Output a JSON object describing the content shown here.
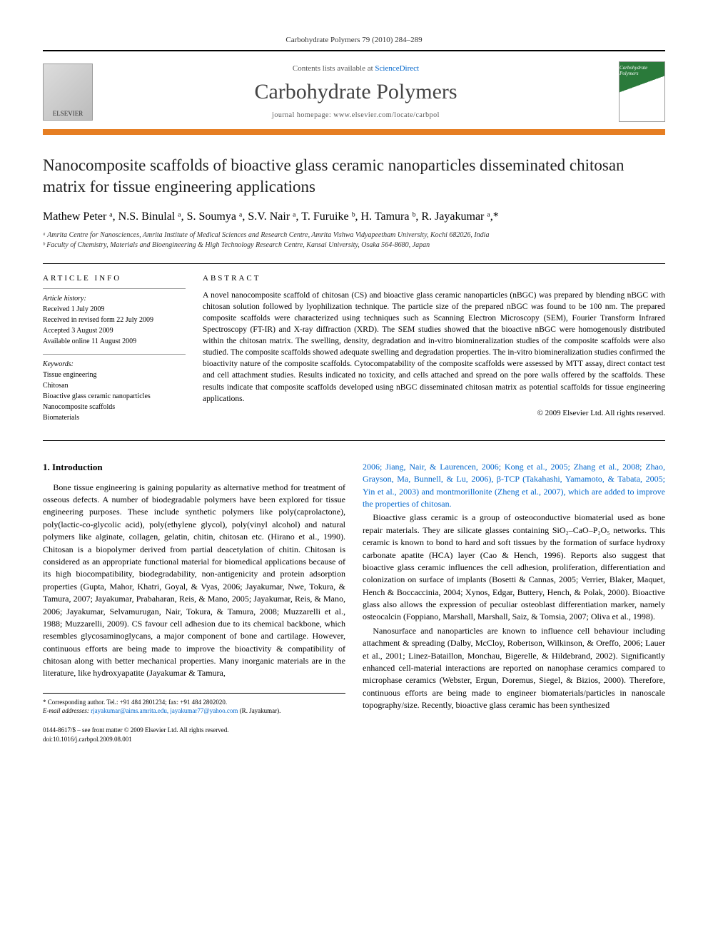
{
  "header": {
    "citation": "Carbohydrate Polymers 79 (2010) 284–289",
    "contents_line": "Contents lists available at ",
    "contents_link": "ScienceDirect",
    "journal_name": "Carbohydrate Polymers",
    "homepage_label": "journal homepage: ",
    "homepage_url": "www.elsevier.com/locate/carbpol",
    "publisher_logo": "ELSEVIER",
    "cover_label": "Carbohydrate Polymers"
  },
  "article": {
    "title": "Nanocomposite scaffolds of bioactive glass ceramic nanoparticles disseminated chitosan matrix for tissue engineering applications",
    "authors_html": "Mathew Peter ᵃ, N.S. Binulal ᵃ, S. Soumya ᵃ, S.V. Nair ᵃ, T. Furuike ᵇ, H. Tamura ᵇ, R. Jayakumar ᵃ,*",
    "affiliations": [
      "ᵃ Amrita Centre for Nanosciences, Amrita Institute of Medical Sciences and Research Centre, Amrita Vishwa Vidyapeetham University, Kochi 682026, India",
      "ᵇ Faculty of Chemistry, Materials and Bioengineering & High Technology Research Centre, Kansai University, Osaka 564-8680, Japan"
    ]
  },
  "info": {
    "heading": "ARTICLE INFO",
    "history_label": "Article history:",
    "history": [
      "Received 1 July 2009",
      "Received in revised form 22 July 2009",
      "Accepted 3 August 2009",
      "Available online 11 August 2009"
    ],
    "keywords_label": "Keywords:",
    "keywords": [
      "Tissue engineering",
      "Chitosan",
      "Bioactive glass ceramic nanoparticles",
      "Nanocomposite scaffolds",
      "Biomaterials"
    ]
  },
  "abstract": {
    "heading": "ABSTRACT",
    "text": "A novel nanocomposite scaffold of chitosan (CS) and bioactive glass ceramic nanoparticles (nBGC) was prepared by blending nBGC with chitosan solution followed by lyophilization technique. The particle size of the prepared nBGC was found to be 100 nm. The prepared composite scaffolds were characterized using techniques such as Scanning Electron Microscopy (SEM), Fourier Transform Infrared Spectroscopy (FT-IR) and X-ray diffraction (XRD). The SEM studies showed that the bioactive nBGC were homogenously distributed within the chitosan matrix. The swelling, density, degradation and in-vitro biomineralization studies of the composite scaffolds were also studied. The composite scaffolds showed adequate swelling and degradation properties. The in-vitro biomineralization studies confirmed the bioactivity nature of the composite scaffolds. Cytocompatability of the composite scaffolds were assessed by MTT assay, direct contact test and cell attachment studies. Results indicated no toxicity, and cells attached and spread on the pore walls offered by the scaffolds. These results indicate that composite scaffolds developed using nBGC disseminated chitosan matrix as potential scaffolds for tissue engineering applications.",
    "copyright": "© 2009 Elsevier Ltd. All rights reserved."
  },
  "body": {
    "section_heading": "1. Introduction",
    "left_para": "Bone tissue engineering is gaining popularity as alternative method for treatment of osseous defects. A number of biodegradable polymers have been explored for tissue engineering purposes. These include synthetic polymers like poly(caprolactone), poly(lactic-co-glycolic acid), poly(ethylene glycol), poly(vinyl alcohol) and natural polymers like alginate, collagen, gelatin, chitin, chitosan etc. (Hirano et al., 1990). Chitosan is a biopolymer derived from partial deacetylation of chitin. Chitosan is considered as an appropriate functional material for biomedical applications because of its high biocompatibility, biodegradability, non-antigenicity and protein adsorption properties (Gupta, Mahor, Khatri, Goyal, & Vyas, 2006; Jayakumar, Nwe, Tokura, & Tamura, 2007; Jayakumar, Prabaharan, Reis, & Mano, 2005; Jayakumar, Reis, & Mano, 2006; Jayakumar, Selvamurugan, Nair, Tokura, & Tamura, 2008; Muzzarelli et al., 1988; Muzzarelli, 2009). CS favour cell adhesion due to its chemical backbone, which resembles glycosaminoglycans, a major component of bone and cartilage. However, continuous efforts are being made to improve the bioactivity & compatibility of chitosan along with better mechanical properties. Many inorganic materials are in the literature, like hydroxyapatite (Jayakumar & Tamura,",
    "right_para1_prefix": "2006; Jiang, Nair, & Laurencen, 2006; Kong et al., 2005; Zhang et al., 2008; Zhao, Grayson, Ma, Bunnell, & Lu, 2006), β-TCP (Takahashi, Yamamoto, & Tabata, 2005; Yin et al., 2003) and montmorillonite (Zheng et al., 2007), which are added to improve the properties of chitosan.",
    "right_para2": "Bioactive glass ceramic is a group of osteoconductive biomaterial used as bone repair materials. They are silicate glasses containing SiO₂–CaO–P₂O₅ networks. This ceramic is known to bond to hard and soft tissues by the formation of surface hydroxy carbonate apatite (HCA) layer (Cao & Hench, 1996). Reports also suggest that bioactive glass ceramic influences the cell adhesion, proliferation, differentiation and colonization on surface of implants (Bosetti & Cannas, 2005; Verrier, Blaker, Maquet, Hench & Boccaccinia, 2004; Xynos, Edgar, Buttery, Hench, & Polak, 2000). Bioactive glass also allows the expression of peculiar osteoblast differentiation marker, namely osteocalcin (Foppiano, Marshall, Marshall, Saiz, & Tomsia, 2007; Oliva et al., 1998).",
    "right_para3": "Nanosurface and nanoparticles are known to influence cell behaviour including attachment & spreading (Dalby, McCloy, Robertson, Wilkinson, & Oreffo, 2006; Lauer et al., 2001; Linez-Bataillon, Monchau, Bigerelle, & Hildebrand, 2002). Significantly enhanced cell-material interactions are reported on nanophase ceramics compared to microphase ceramics (Webster, Ergun, Doremus, Siegel, & Bizios, 2000). Therefore, continuous efforts are being made to engineer biomaterials/particles in nanoscale topography/size. Recently, bioactive glass ceramic has been synthesized"
  },
  "footnotes": {
    "corresponding": "* Corresponding author. Tel.: +91 484 2801234; fax: +91 484 2802020.",
    "email_label": "E-mail addresses: ",
    "emails": "rjayakumar@aims.amrita.edu, jayakumar77@yahoo.com",
    "email_author": " (R. Jayakumar)."
  },
  "footer": {
    "issn": "0144-8617/$ – see front matter © 2009 Elsevier Ltd. All rights reserved.",
    "doi": "doi:10.1016/j.carbpol.2009.08.001"
  },
  "colors": {
    "orange": "#e67e22",
    "link_blue": "#0066cc",
    "text": "#000000"
  }
}
